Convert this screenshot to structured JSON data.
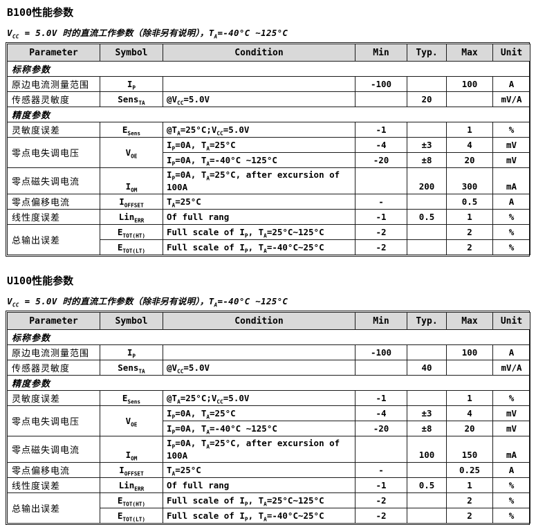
{
  "page": {
    "background": "#ffffff",
    "text_color": "#000000",
    "header_bg": "#d9d9d9",
    "border_color": "#1a1a1a"
  },
  "tables": [
    {
      "title": "B100性能参数",
      "subtitle": "V_{CC} = 5.0V 时的直流工作参数（除非另有说明），T_{A}=-40°C ~125°C",
      "headers": {
        "parameter": "Parameter",
        "symbol": "Symbol",
        "condition": "Condition",
        "min": "Min",
        "typ": "Typ.",
        "max": "Max",
        "unit": "Unit"
      },
      "sections": {
        "nominal": "标称参数",
        "accuracy": "精度参数"
      },
      "rows": {
        "ip": {
          "param": "原边电流测量范围",
          "symbol": "I_{P}",
          "cond": "",
          "min": "-100",
          "typ": "",
          "max": "100",
          "unit": "A"
        },
        "sens": {
          "param": "传感器灵敏度",
          "symbol": "Sens_{TA}",
          "cond": "@V_{CC}=5.0V",
          "min": "",
          "typ": "20",
          "max": "",
          "unit": "mV/A"
        },
        "esens": {
          "param": "灵敏度误差",
          "symbol": "E_{Sens}",
          "cond": "@T_{A}=25°C;V_{CC}=5.0V",
          "min": "-1",
          "typ": "",
          "max": "1",
          "unit": "%"
        },
        "voe": {
          "param": "零点电失调电压",
          "symbol": "V_{OE}",
          "r1": {
            "cond": "I_{P}=0A, T_{A}=25°C",
            "min": "-4",
            "typ": "±3",
            "max": "4",
            "unit": "mV"
          },
          "r2": {
            "cond": "I_{P}=0A, T_{A}=-40°C ~125°C",
            "min": "-20",
            "typ": "±8",
            "max": "20",
            "unit": "mV"
          }
        },
        "iom": {
          "param": "零点磁失调电流",
          "symbol": "I_{OM}",
          "cond": "I_{P}=0A, T_{A}=25°C, after excursion of 100A",
          "min": "",
          "typ": "200",
          "max": "300",
          "unit": "mA"
        },
        "ioffset": {
          "param": "零点偏移电流",
          "symbol": "I_{OFFSET}",
          "cond": "T_{A}=25°C",
          "min": "-",
          "typ": "",
          "max": "0.5",
          "unit": "A"
        },
        "lin": {
          "param": "线性度误差",
          "symbol": "Lin_{ERR}",
          "cond": "Of full rang",
          "min": "-1",
          "typ": "0.5",
          "max": "1",
          "unit": "%"
        },
        "etot": {
          "param": "总输出误差",
          "r1": {
            "symbol": "E_{TOT(HT)}",
            "cond": "Full scale of I_{P}, T_{A}=25°C~125°C",
            "min": "-2",
            "typ": "",
            "max": "2",
            "unit": "%"
          },
          "r2": {
            "symbol": "E_{TOT(LT)}",
            "cond": "Full scale of I_{P}, T_{A}=-40°C~25°C",
            "min": "-2",
            "typ": "",
            "max": "2",
            "unit": "%"
          }
        }
      }
    },
    {
      "title": "U100性能参数",
      "subtitle": "V_{CC} = 5.0V 时的直流工作参数（除非另有说明），T_{A}=-40°C ~125°C",
      "headers": {
        "parameter": "Parameter",
        "symbol": "Symbol",
        "condition": "Condition",
        "min": "Min",
        "typ": "Typ.",
        "max": "Max",
        "unit": "Unit"
      },
      "sections": {
        "nominal": "标称参数",
        "accuracy": "精度参数"
      },
      "rows": {
        "ip": {
          "param": "原边电流测量范围",
          "symbol": "I_{P}",
          "cond": "",
          "min": "-100",
          "typ": "",
          "max": "100",
          "unit": "A"
        },
        "sens": {
          "param": "传感器灵敏度",
          "symbol": "Sens_{TA}",
          "cond": "@V_{CC}=5.0V",
          "min": "",
          "typ": "40",
          "max": "",
          "unit": "mV/A"
        },
        "esens": {
          "param": "灵敏度误差",
          "symbol": "E_{Sens}",
          "cond": "@T_{A}=25°C;V_{CC}=5.0V",
          "min": "-1",
          "typ": "",
          "max": "1",
          "unit": "%"
        },
        "voe": {
          "param": "零点电失调电压",
          "symbol": "V_{OE}",
          "r1": {
            "cond": "I_{P}=0A, T_{A}=25°C",
            "min": "-4",
            "typ": "±3",
            "max": "4",
            "unit": "mV"
          },
          "r2": {
            "cond": "I_{P}=0A, T_{A}=-40°C ~125°C",
            "min": "-20",
            "typ": "±8",
            "max": "20",
            "unit": "mV"
          }
        },
        "iom": {
          "param": "零点磁失调电流",
          "symbol": "I_{OM}",
          "cond": "I_{P}=0A, T_{A}=25°C, after excursion of 100A",
          "min": "",
          "typ": "100",
          "max": "150",
          "unit": "mA"
        },
        "ioffset": {
          "param": "零点偏移电流",
          "symbol": "I_{OFFSET}",
          "cond": "T_{A}=25°C",
          "min": "-",
          "typ": "",
          "max": "0.25",
          "unit": "A"
        },
        "lin": {
          "param": "线性度误差",
          "symbol": "Lin_{ERR}",
          "cond": "Of full rang",
          "min": "-1",
          "typ": "0.5",
          "max": "1",
          "unit": "%"
        },
        "etot": {
          "param": "总输出误差",
          "r1": {
            "symbol": "E_{TOT(HT)}",
            "cond": "Full scale of I_{P}, T_{A}=25°C~125°C",
            "min": "-2",
            "typ": "",
            "max": "2",
            "unit": "%"
          },
          "r2": {
            "symbol": "E_{TOT(LT)}",
            "cond": "Full scale of I_{P}, T_{A}=-40°C~25°C",
            "min": "-2",
            "typ": "",
            "max": "2",
            "unit": "%"
          }
        }
      }
    }
  ]
}
